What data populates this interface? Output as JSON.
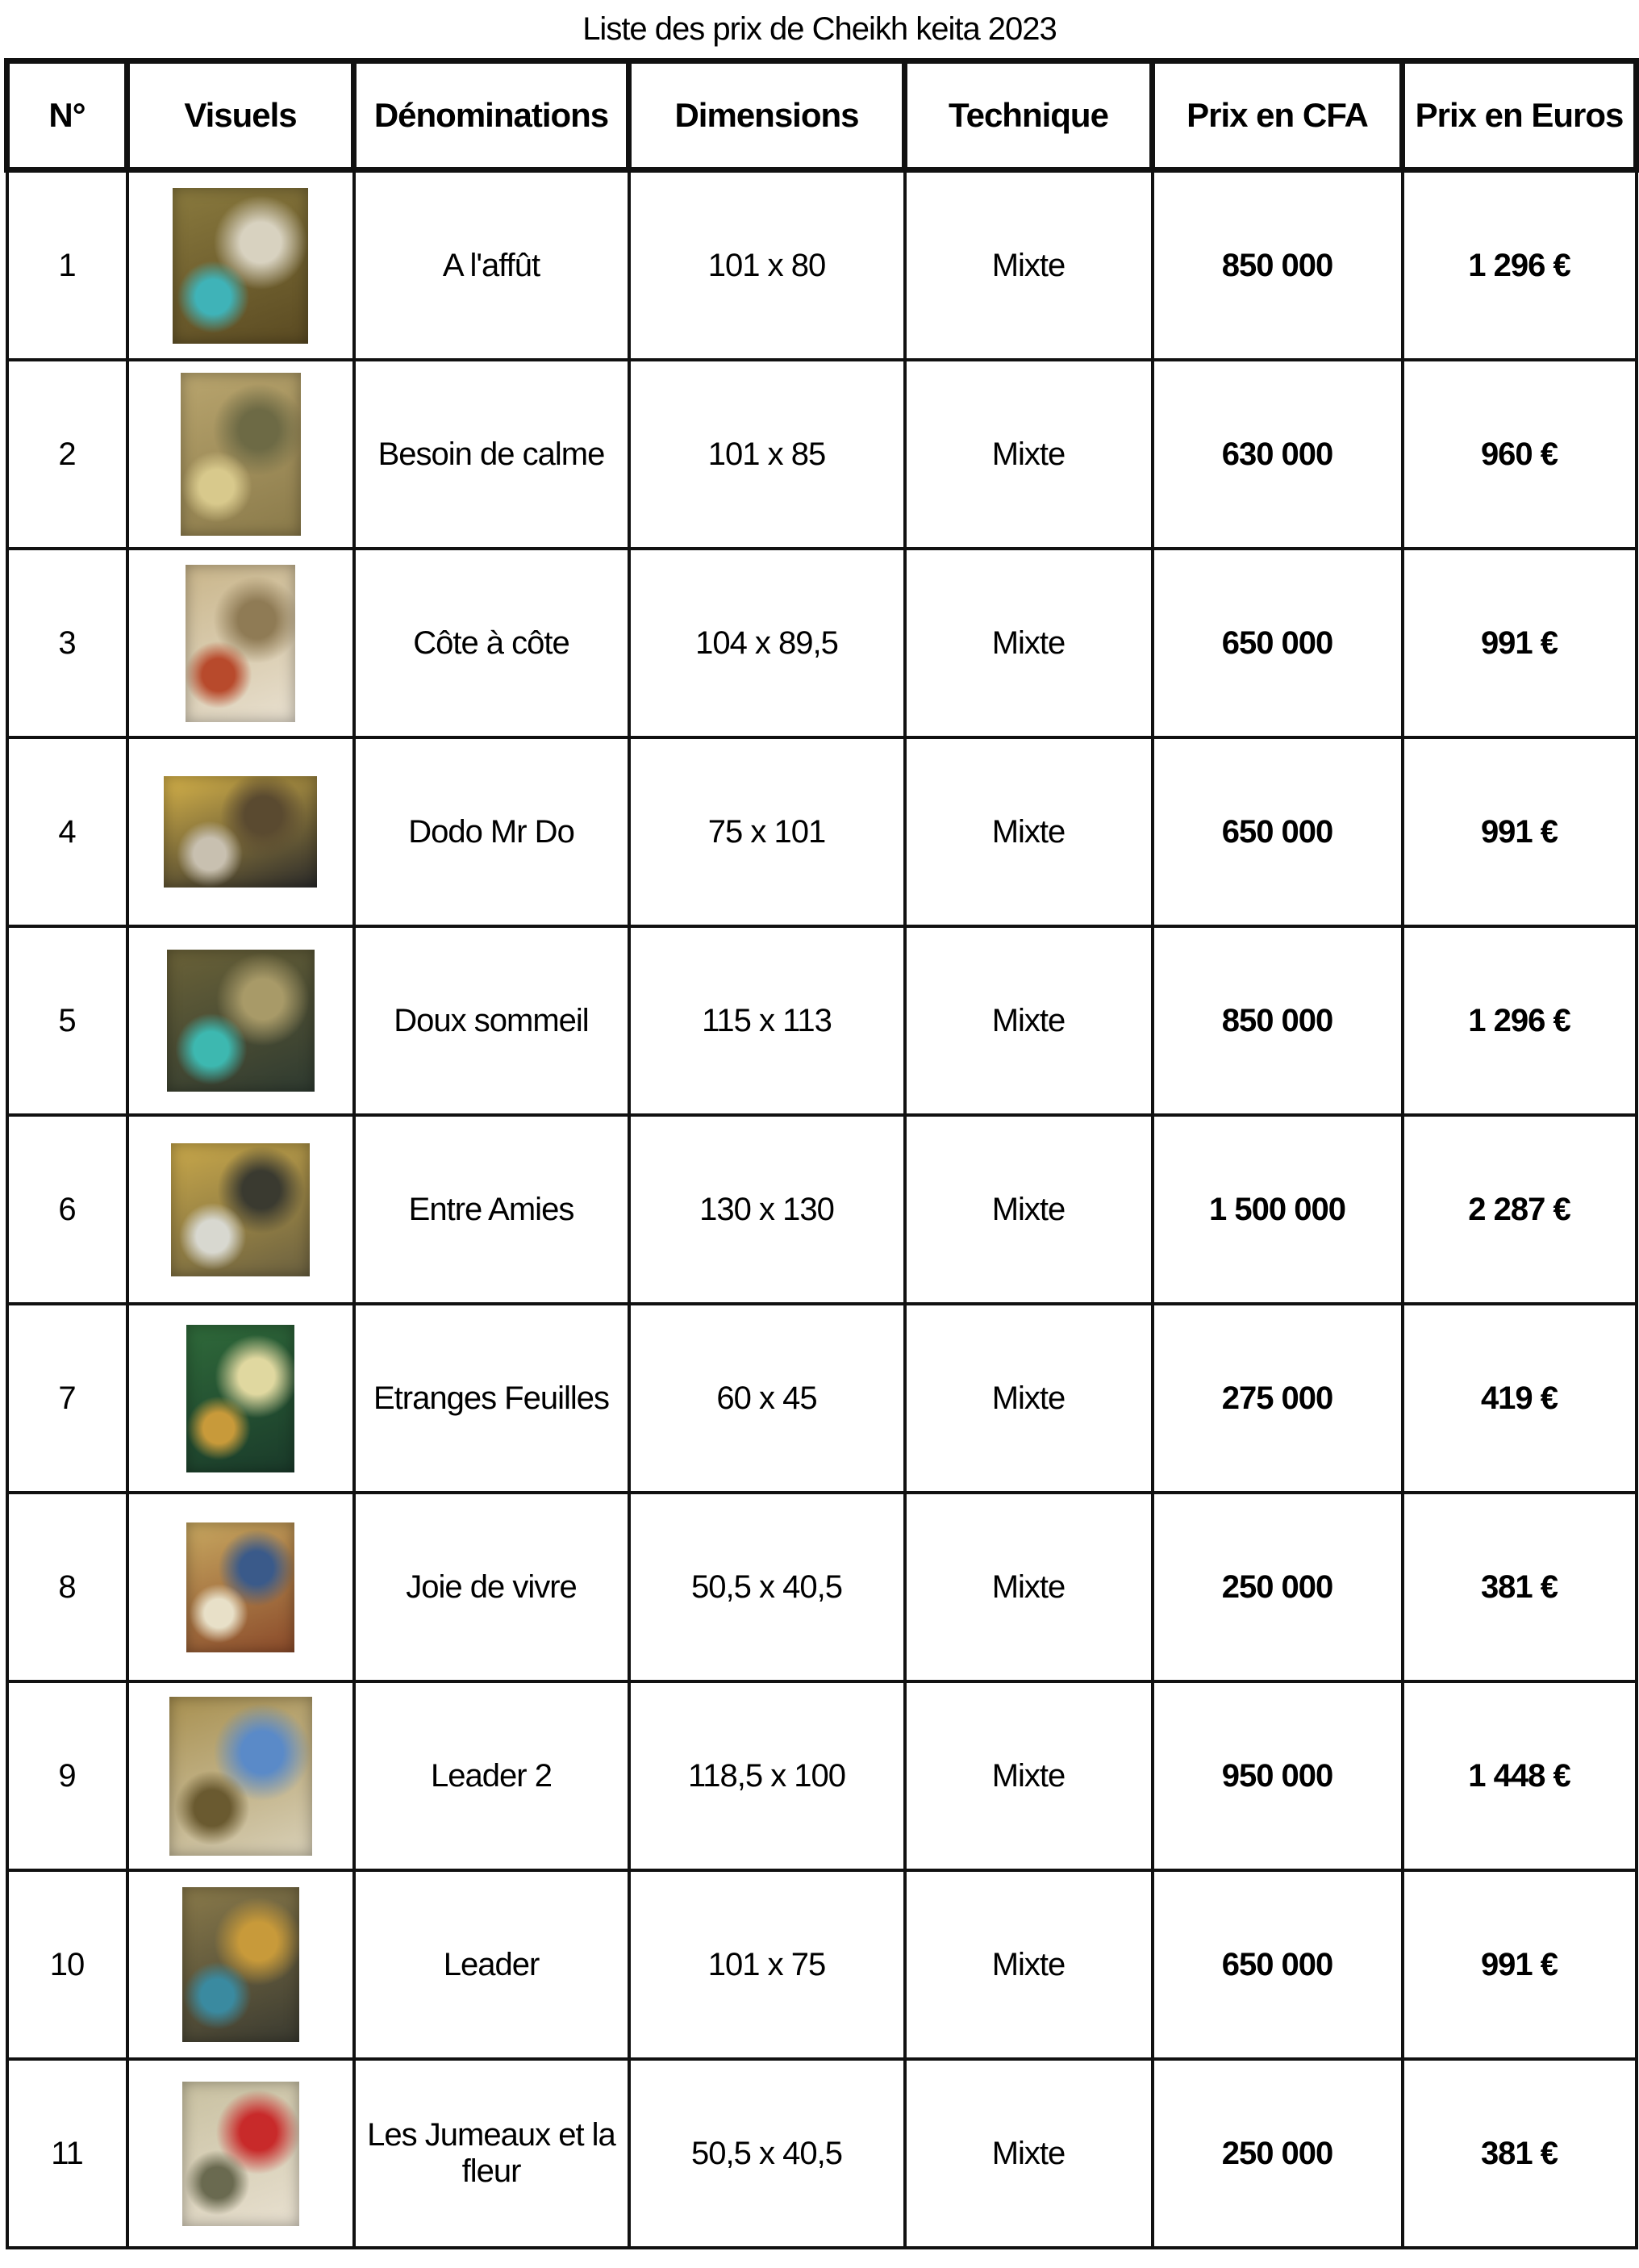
{
  "title": "Liste des prix de Cheikh keita 2023",
  "headers": [
    "N°",
    "Visuels",
    "Dénominations",
    "Dimensions",
    "Technique",
    "Prix en CFA",
    "Prix en Euros"
  ],
  "rows": [
    {
      "n": "1",
      "name": "A l'affût",
      "dims": "101 x 80",
      "tech": "Mixte",
      "cfa": "850 000",
      "eur": "1 296 €",
      "colors": [
        "#8a7a3e",
        "#d8d2c0",
        "#3fb3b8",
        "#5a4a22"
      ]
    },
    {
      "n": "2",
      "name": "Besoin de calme",
      "dims": "101 x 85",
      "tech": "Mixte",
      "cfa": "630 000",
      "eur": "960 €",
      "colors": [
        "#b9a56e",
        "#6d6a45",
        "#d8c98c",
        "#8a7a4a"
      ]
    },
    {
      "n": "3",
      "name": "Côte à côte",
      "dims": "104 x 89,5",
      "tech": "Mixte",
      "cfa": "650 000",
      "eur": "991 €",
      "colors": [
        "#c9b58a",
        "#8f7b55",
        "#b84a2c",
        "#e8e0d0"
      ]
    },
    {
      "n": "4",
      "name": "Dodo Mr Do",
      "dims": "75 x 101",
      "tech": "Mixte",
      "cfa": "650 000",
      "eur": "991 €",
      "colors": [
        "#d7b34a",
        "#5a4a30",
        "#c8c0b0",
        "#2a2a2a"
      ]
    },
    {
      "n": "5",
      "name": "Doux sommeil",
      "dims": "115 x 113",
      "tech": "Mixte",
      "cfa": "850 000",
      "eur": "1 296 €",
      "colors": [
        "#6b6238",
        "#a89a68",
        "#3db8b0",
        "#2e3a30"
      ]
    },
    {
      "n": "6",
      "name": "Entre Amies",
      "dims": "130 x 130",
      "tech": "Mixte",
      "cfa": "1 500 000",
      "eur": "2 287 €",
      "colors": [
        "#c9a84a",
        "#3a3a30",
        "#d8d8d0",
        "#6a6040"
      ]
    },
    {
      "n": "7",
      "name": "Etranges Feuilles",
      "dims": "60 x 45",
      "tech": "Mixte",
      "cfa": "275 000",
      "eur": "419 €",
      "colors": [
        "#2f6a3a",
        "#e0d8a0",
        "#c89a3a",
        "#1a3a2a"
      ]
    },
    {
      "n": "8",
      "name": "Joie de vivre",
      "dims": "50,5 x 40,5",
      "tech": "Mixte",
      "cfa": "250 000",
      "eur": "381 €",
      "colors": [
        "#c8a860",
        "#3a5a8a",
        "#e8e0c8",
        "#8a4a2a"
      ]
    },
    {
      "n": "9",
      "name": "Leader 2",
      "dims": "118,5 x 100",
      "tech": "Mixte",
      "cfa": "950 000",
      "eur": "1 448 €",
      "colors": [
        "#a89050",
        "#5a8ac8",
        "#6a5a30",
        "#d8d0b8"
      ]
    },
    {
      "n": "10",
      "name": "Leader",
      "dims": "101 x 75",
      "tech": "Mixte",
      "cfa": "650 000",
      "eur": "991 €",
      "colors": [
        "#8a7a4a",
        "#c89a3a",
        "#3a8aa0",
        "#3a3a30"
      ]
    },
    {
      "n": "11",
      "name": "Les Jumeaux et la fleur",
      "dims": "50,5 x 40,5",
      "tech": "Mixte",
      "cfa": "250 000",
      "eur": "381 €",
      "colors": [
        "#c8c0a0",
        "#c82a2a",
        "#6a6a50",
        "#e8e0d0"
      ]
    }
  ]
}
